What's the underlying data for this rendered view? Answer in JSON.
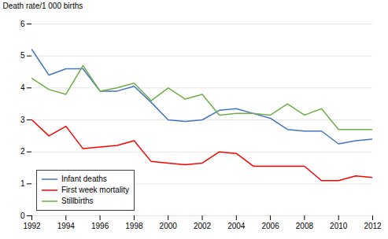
{
  "chart_data": {
    "type": "line",
    "x": [
      1992,
      1993,
      1994,
      1995,
      1996,
      1997,
      1998,
      1999,
      2000,
      2001,
      2002,
      2003,
      2004,
      2005,
      2006,
      2007,
      2008,
      2009,
      2010,
      2011,
      2012
    ],
    "series": [
      {
        "name": "Infant deaths",
        "color": "#4472C4",
        "values": [
          5.2,
          4.4,
          4.6,
          4.6,
          3.9,
          3.9,
          4.05,
          3.55,
          3.0,
          2.95,
          3.0,
          3.3,
          3.35,
          3.2,
          3.05,
          2.7,
          2.65,
          2.65,
          2.25,
          2.35,
          2.4
        ]
      },
      {
        "name": "First week mortality",
        "color": "#FF0000",
        "values": [
          3.0,
          2.5,
          2.8,
          2.1,
          2.15,
          2.2,
          2.35,
          1.7,
          1.65,
          1.6,
          1.65,
          2.0,
          1.95,
          1.55,
          1.55,
          1.55,
          1.55,
          1.1,
          1.1,
          1.25,
          1.2
        ]
      },
      {
        "name": "Stillbirths",
        "color": "#70AD47",
        "values": [
          4.3,
          3.95,
          3.8,
          4.7,
          3.9,
          4.0,
          4.15,
          3.6,
          4.0,
          3.65,
          3.8,
          3.15,
          3.2,
          3.2,
          3.15,
          3.5,
          3.15,
          3.35,
          2.7,
          2.7,
          2.7
        ]
      }
    ],
    "ylabel": "Death rate/1 000 births",
    "xlim": [
      1992,
      2012
    ],
    "xticks": [
      1992,
      1994,
      1996,
      1998,
      2000,
      2002,
      2004,
      2006,
      2008,
      2010,
      2012
    ],
    "ylim": [
      0,
      6
    ],
    "yticks": [
      0,
      1,
      2,
      3,
      4,
      5,
      6
    ],
    "grid": "y",
    "legend": "lower left"
  }
}
